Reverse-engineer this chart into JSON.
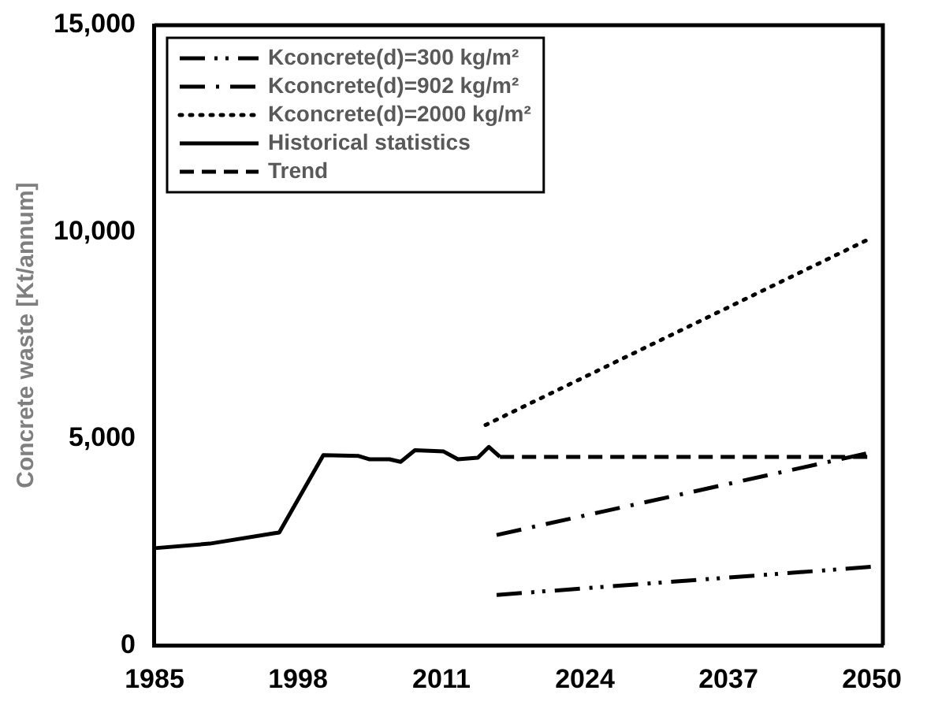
{
  "chart_data": {
    "type": "line",
    "ylabel": "Concrete waste [Kt/annum]",
    "xlim": [
      1985,
      2051
    ],
    "xticks": [
      1985,
      1998,
      2011,
      2024,
      2037,
      2050
    ],
    "ylim": [
      0,
      15000
    ],
    "yticks": [
      0,
      {
        "value": 5000,
        "label": "5,000"
      },
      {
        "value": 10000,
        "label": "10,000"
      },
      {
        "value": 15000,
        "label": "15,000"
      }
    ],
    "grid": false,
    "legend": "top left",
    "marker": "none",
    "series": [
      {
        "name": "Kconcrete(d)=300 kg/m²",
        "color": "#000000",
        "line_style": "dashdotdot",
        "x": [
          2016,
          2050
        ],
        "values": [
          1220,
          1900
        ]
      },
      {
        "name": "Kconcrete(d)=902 kg/m²",
        "color": "#000000",
        "line_style": "dashdot",
        "x": [
          2016,
          2050
        ],
        "values": [
          2670,
          4670
        ]
      },
      {
        "name": "Kconcrete(d)=2000 kg/m²",
        "color": "#000000",
        "line_style": "dotted",
        "x": [
          2015,
          2050
        ],
        "values": [
          5330,
          9860
        ]
      },
      {
        "name": "Historical statistics",
        "color": "#000000",
        "line_style": "solid",
        "x": [
          1985,
          1990,
          1995.8,
          1996.3,
          2000.3,
          2003.5,
          2004.5,
          2006.3,
          2007.3,
          2008.6,
          2011.2,
          2012.5,
          2014.3,
          2015.3,
          2016.3
        ],
        "values": [
          2350,
          2460,
          2710,
          2730,
          4600,
          4580,
          4500,
          4500,
          4440,
          4720,
          4690,
          4500,
          4540,
          4800,
          4560
        ]
      },
      {
        "name": "Trend",
        "color": "#000000",
        "line_style": "dashed",
        "x": [
          2016.3,
          2050
        ],
        "values": [
          4560,
          4560
        ]
      }
    ]
  }
}
